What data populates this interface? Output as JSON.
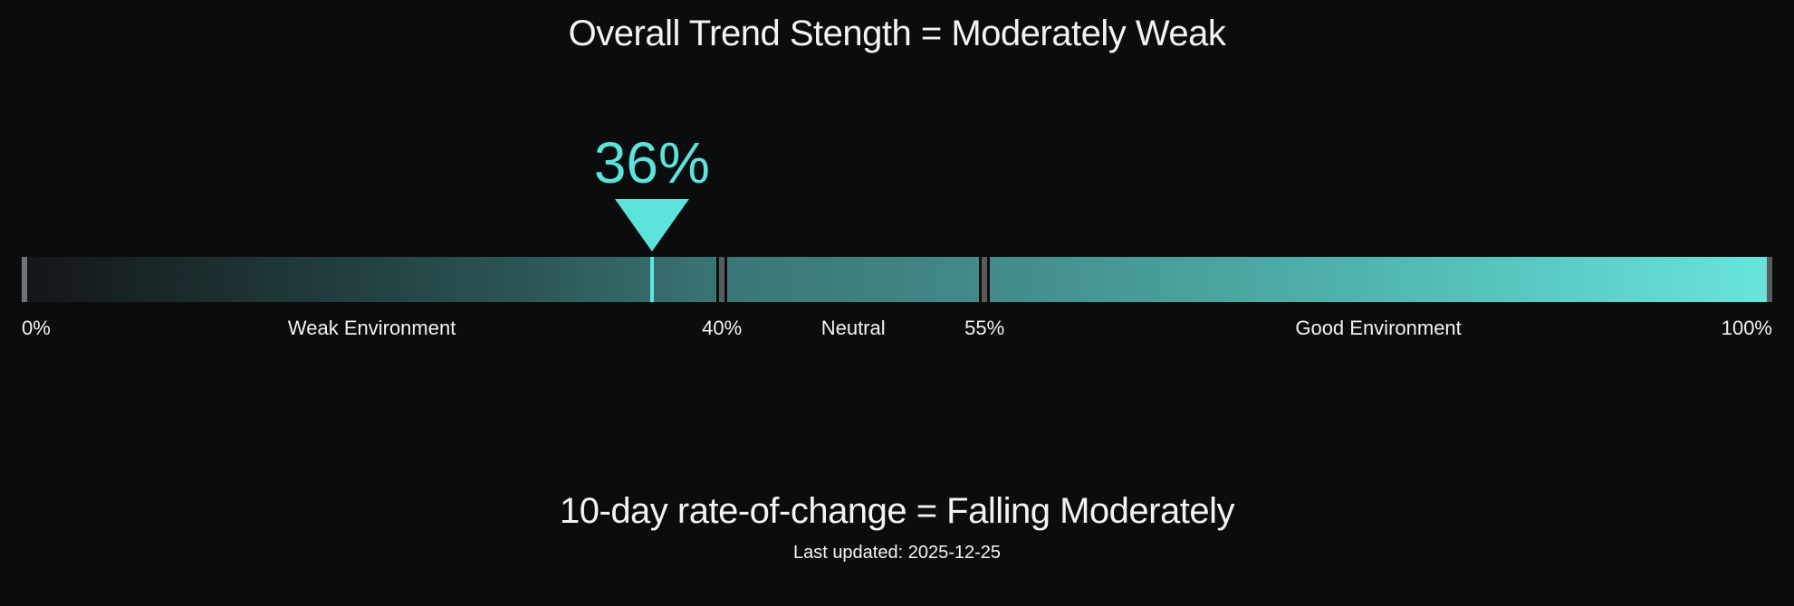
{
  "title": "Overall Trend Stength = Moderately Weak",
  "subtitle": "10-day rate-of-change = Falling Moderately",
  "last_updated": "Last updated: 2025-12-25",
  "chart_data": {
    "type": "gauge",
    "value_pct": 36,
    "value_label": "36%",
    "range": [
      0,
      100
    ],
    "thresholds": [
      {
        "pct": 0,
        "label": "0%"
      },
      {
        "pct": 40,
        "label": "40%"
      },
      {
        "pct": 55,
        "label": "55%"
      },
      {
        "pct": 100,
        "label": "100%"
      }
    ],
    "zones": [
      {
        "label": "Weak Environment",
        "from": 0,
        "to": 40
      },
      {
        "label": "Neutral",
        "from": 40,
        "to": 55
      },
      {
        "label": "Good Environment",
        "from": 55,
        "to": 100
      }
    ],
    "colors": {
      "background": "#0b0c0e",
      "accent": "#5ce3da",
      "gradient_start": "#131518",
      "gradient_mid": "#428a88",
      "gradient_end": "#68e5de",
      "divider": "#565b5c",
      "end_tick": "#717476",
      "text": "#f2f3f4"
    }
  }
}
